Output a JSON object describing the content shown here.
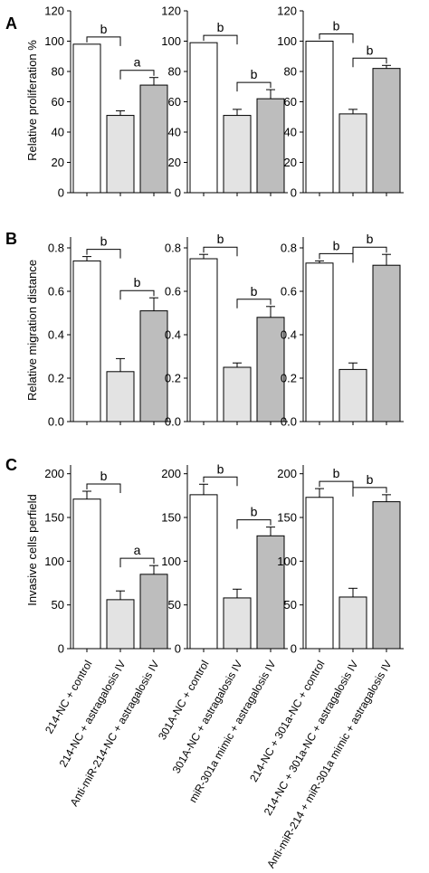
{
  "figure": {
    "panel_letters": [
      "A",
      "B",
      "C"
    ],
    "row_ylabels": [
      "Relative proliferation %",
      "Relative migration distance",
      "Invasive cells perfield"
    ]
  },
  "chart_data": [
    {
      "type": "bar",
      "panel": "A",
      "row": 0,
      "col": 0,
      "categories": [
        "214-NC + control",
        "214-NC + astragalosis IV",
        "Anti-miR-214-NC + astragalosis IV"
      ],
      "values": [
        98,
        51,
        71
      ],
      "errors": [
        0,
        3,
        5
      ],
      "ylim": [
        0,
        120
      ],
      "yticks": [
        0,
        20,
        40,
        60,
        80,
        100,
        120
      ],
      "ylabel": "Relative proliferation %",
      "significance": [
        {
          "from": 0,
          "to": 1,
          "label": "b"
        },
        {
          "from": 1,
          "to": 2,
          "label": "a"
        }
      ]
    },
    {
      "type": "bar",
      "panel": "A",
      "row": 0,
      "col": 1,
      "categories": [
        "301A-NC + control",
        "301A-NC + astragalosis IV",
        "miR-301a mimic + astragalosis IV"
      ],
      "values": [
        99,
        51,
        62
      ],
      "errors": [
        0,
        4,
        6
      ],
      "ylim": [
        0,
        120
      ],
      "yticks": [
        0,
        20,
        40,
        60,
        80,
        100,
        120
      ],
      "significance": [
        {
          "from": 0,
          "to": 1,
          "label": "b"
        },
        {
          "from": 1,
          "to": 2,
          "label": "b"
        }
      ]
    },
    {
      "type": "bar",
      "panel": "A",
      "row": 0,
      "col": 2,
      "categories": [
        "214-NC + 301a-NC + control",
        "214-NC + 301a-NC + astragalosis IV",
        "Anti-miR-214 + miR-301a mimic + astragalosis IV"
      ],
      "values": [
        100,
        52,
        82
      ],
      "errors": [
        0,
        3,
        2
      ],
      "ylim": [
        0,
        120
      ],
      "yticks": [
        0,
        20,
        40,
        60,
        80,
        100,
        120
      ],
      "significance": [
        {
          "from": 0,
          "to": 1,
          "label": "b"
        },
        {
          "from": 1,
          "to": 2,
          "label": "b"
        }
      ]
    },
    {
      "type": "bar",
      "panel": "B",
      "row": 1,
      "col": 0,
      "categories": [
        "214-NC + control",
        "214-NC + astragalosis IV",
        "Anti-miR-214-NC + astragalosis IV"
      ],
      "values": [
        0.74,
        0.23,
        0.51
      ],
      "errors": [
        0.02,
        0.06,
        0.06
      ],
      "ylim": [
        0,
        0.85
      ],
      "yticks": [
        0.0,
        0.2,
        0.4,
        0.6,
        0.8
      ],
      "tick_format": 1,
      "ylabel": "Relative migration distance",
      "significance": [
        {
          "from": 0,
          "to": 1,
          "label": "b"
        },
        {
          "from": 1,
          "to": 2,
          "label": "b"
        }
      ]
    },
    {
      "type": "bar",
      "panel": "B",
      "row": 1,
      "col": 1,
      "categories": [
        "301A-NC + control",
        "301A-NC + astragalosis IV",
        "miR-301a mimic + astragalosis IV"
      ],
      "values": [
        0.75,
        0.25,
        0.48
      ],
      "errors": [
        0.02,
        0.02,
        0.05
      ],
      "ylim": [
        0,
        0.85
      ],
      "yticks": [
        0.0,
        0.2,
        0.4,
        0.6,
        0.8
      ],
      "tick_format": 1,
      "significance": [
        {
          "from": 0,
          "to": 1,
          "label": "b"
        },
        {
          "from": 1,
          "to": 2,
          "label": "b"
        }
      ]
    },
    {
      "type": "bar",
      "panel": "B",
      "row": 1,
      "col": 2,
      "categories": [
        "214-NC + 301a-NC + control",
        "214-NC + 301a-NC + astragalosis IV",
        "Anti-miR-214 + miR-301a mimic + astragalosis IV"
      ],
      "values": [
        0.73,
        0.24,
        0.72
      ],
      "errors": [
        0.01,
        0.03,
        0.05
      ],
      "ylim": [
        0,
        0.85
      ],
      "yticks": [
        0.0,
        0.2,
        0.4,
        0.6,
        0.8
      ],
      "tick_format": 1,
      "significance": [
        {
          "from": 0,
          "to": 1,
          "label": "b"
        },
        {
          "from": 1,
          "to": 2,
          "label": "b"
        }
      ]
    },
    {
      "type": "bar",
      "panel": "C",
      "row": 2,
      "col": 0,
      "categories": [
        "214-NC + control",
        "214-NC + astragalosis IV",
        "Anti-miR-214-NC + astragalosis IV"
      ],
      "values": [
        171,
        56,
        85
      ],
      "errors": [
        9,
        10,
        10
      ],
      "ylim": [
        0,
        210
      ],
      "yticks": [
        0,
        50,
        100,
        150,
        200
      ],
      "ylabel": "Invasive cells perfield",
      "significance": [
        {
          "from": 0,
          "to": 1,
          "label": "b"
        },
        {
          "from": 1,
          "to": 2,
          "label": "a"
        }
      ]
    },
    {
      "type": "bar",
      "panel": "C",
      "row": 2,
      "col": 1,
      "categories": [
        "301A-NC + control",
        "301A-NC + astragalosis IV",
        "miR-301a mimic + astragalosis IV"
      ],
      "values": [
        176,
        58,
        129
      ],
      "errors": [
        12,
        10,
        10
      ],
      "ylim": [
        0,
        210
      ],
      "yticks": [
        0,
        50,
        100,
        150,
        200
      ],
      "significance": [
        {
          "from": 0,
          "to": 1,
          "label": "b"
        },
        {
          "from": 1,
          "to": 2,
          "label": "b"
        }
      ]
    },
    {
      "type": "bar",
      "panel": "C",
      "row": 2,
      "col": 2,
      "categories": [
        "214-NC + 301a-NC + control",
        "214-NC + 301a-NC + astragalosis IV",
        "Anti-miR-214 + miR-301a mimic + astragalosis IV"
      ],
      "values": [
        173,
        59,
        168
      ],
      "errors": [
        10,
        10,
        8
      ],
      "ylim": [
        0,
        210
      ],
      "yticks": [
        0,
        50,
        100,
        150,
        200
      ],
      "significance": [
        {
          "from": 0,
          "to": 1,
          "label": "b"
        },
        {
          "from": 1,
          "to": 2,
          "label": "b"
        }
      ]
    }
  ],
  "colors": {
    "bar_fills": [
      "#ffffff",
      "#e3e3e3",
      "#bdbdbd"
    ],
    "stroke": "#000000"
  }
}
